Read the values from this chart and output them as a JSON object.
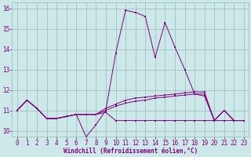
{
  "xlabel": "Windchill (Refroidissement éolien,°C)",
  "x": [
    0,
    1,
    2,
    3,
    4,
    5,
    6,
    7,
    8,
    9,
    10,
    11,
    12,
    13,
    14,
    15,
    16,
    17,
    18,
    19,
    20,
    21,
    22,
    23
  ],
  "line1": [
    11.0,
    11.5,
    11.1,
    10.6,
    10.6,
    10.7,
    10.8,
    9.7,
    10.3,
    11.0,
    13.8,
    15.9,
    15.8,
    15.6,
    13.6,
    15.3,
    14.1,
    13.0,
    11.8,
    11.7,
    10.5,
    11.0,
    10.5,
    10.5
  ],
  "line2": [
    11.0,
    11.5,
    11.1,
    10.6,
    10.6,
    10.7,
    10.8,
    10.8,
    10.8,
    11.1,
    11.3,
    11.5,
    11.6,
    11.65,
    11.7,
    11.75,
    11.8,
    11.85,
    11.9,
    11.9,
    10.5,
    11.0,
    10.5,
    10.5
  ],
  "line3": [
    11.0,
    11.5,
    11.1,
    10.6,
    10.6,
    10.7,
    10.8,
    10.8,
    10.8,
    11.0,
    11.2,
    11.35,
    11.45,
    11.5,
    11.6,
    11.65,
    11.7,
    11.75,
    11.8,
    11.8,
    10.5,
    11.0,
    10.5,
    10.5
  ],
  "line4": [
    11.0,
    11.5,
    11.1,
    10.6,
    10.6,
    10.7,
    10.8,
    10.8,
    10.8,
    10.9,
    10.5,
    10.5,
    10.5,
    10.5,
    10.5,
    10.5,
    10.5,
    10.5,
    10.5,
    10.5,
    10.5,
    10.5,
    10.5,
    10.5
  ],
  "line_color": "#800080",
  "bg_color": "#cce8e8",
  "grid_color": "#99bbbb",
  "ylim": [
    9.7,
    16.3
  ],
  "xlim": [
    -0.5,
    23.5
  ],
  "yticks": [
    10,
    11,
    12,
    13,
    14,
    15,
    16
  ],
  "xticks": [
    0,
    1,
    2,
    3,
    4,
    5,
    6,
    7,
    8,
    9,
    10,
    11,
    12,
    13,
    14,
    15,
    16,
    17,
    18,
    19,
    20,
    21,
    22,
    23
  ],
  "tick_fontsize": 5.5,
  "xlabel_fontsize": 5.5
}
